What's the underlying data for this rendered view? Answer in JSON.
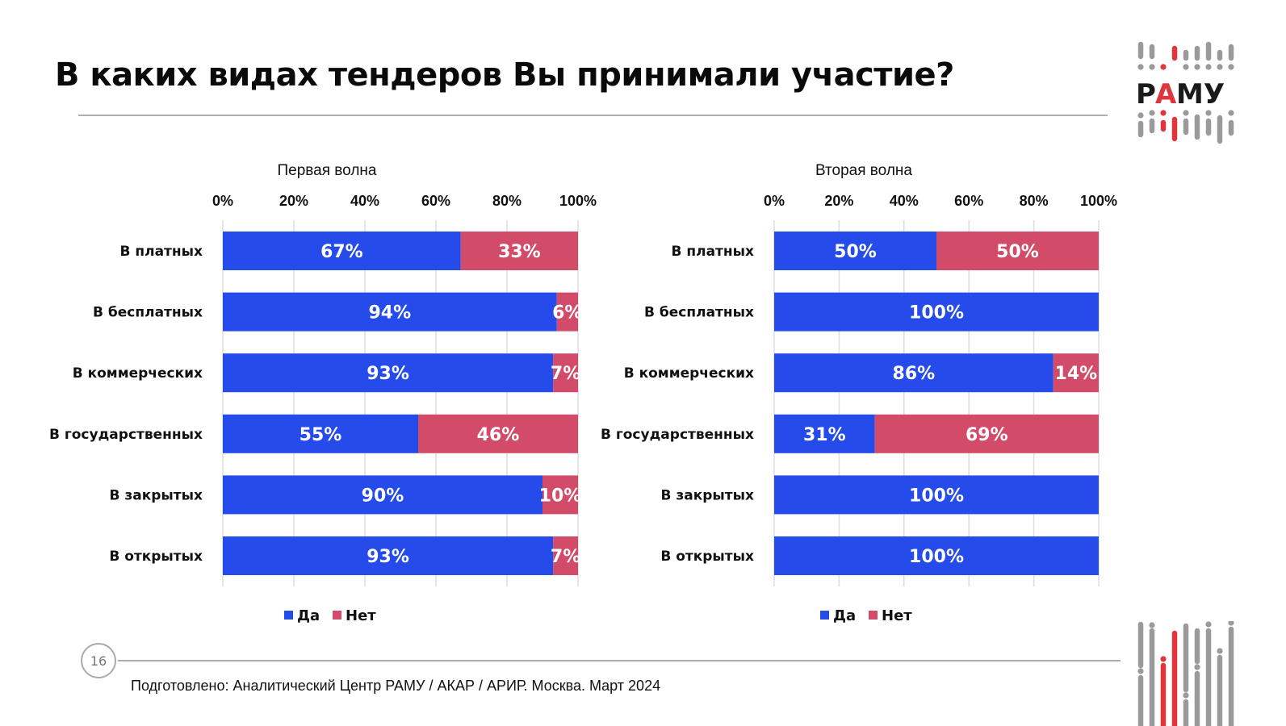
{
  "slide": {
    "title": "В каких видах тендеров Вы принимали участие?",
    "page_number": "16",
    "footer": "Подготовлено: Аналитический Центр РАМУ / АКАР / АРИР. Москва. Март 2024",
    "logo_text": "РАМУ"
  },
  "colors": {
    "yes": "#254BEB",
    "no": "#D24C69",
    "grid": "#dddddd",
    "logo_gray": "#9a9a9c",
    "logo_red": "#e0353d"
  },
  "chart_data": [
    {
      "type": "bar",
      "orientation": "horizontal",
      "stacked": true,
      "title": "Первая волна",
      "categories": [
        "В платных",
        "В бесплатных",
        "В коммерческих",
        "В государственных",
        "В закрытых",
        "В открытых"
      ],
      "series": [
        {
          "name": "Да",
          "values": [
            67,
            94,
            93,
            55,
            90,
            93
          ],
          "labels": [
            "67%",
            "94%",
            "93%",
            "55%",
            "90%",
            "93%"
          ]
        },
        {
          "name": "Нет",
          "values": [
            33,
            6,
            7,
            46,
            10,
            7
          ],
          "labels": [
            "33%",
            "6%",
            "7%",
            "46%",
            "10%",
            "7%"
          ]
        }
      ],
      "xlim": [
        0,
        100
      ],
      "xticks": [
        "0%",
        "20%",
        "40%",
        "60%",
        "80%",
        "100%"
      ],
      "grid": true,
      "legend": "bottom",
      "xaxis_position": "top"
    },
    {
      "type": "bar",
      "orientation": "horizontal",
      "stacked": true,
      "title": "Вторая волна",
      "categories": [
        "В платных",
        "В бесплатных",
        "В коммерческих",
        "В государственных",
        "В закрытых",
        "В открытых"
      ],
      "series": [
        {
          "name": "Да",
          "values": [
            50,
            100,
            86,
            31,
            100,
            100
          ],
          "labels": [
            "50%",
            "100%",
            "86%",
            "31%",
            "100%",
            "100%"
          ]
        },
        {
          "name": "Нет",
          "values": [
            50,
            0,
            14,
            69,
            0,
            0
          ],
          "labels": [
            "50%",
            "",
            "14%",
            "69%",
            "",
            ""
          ]
        }
      ],
      "xlim": [
        0,
        100
      ],
      "xticks": [
        "0%",
        "20%",
        "40%",
        "60%",
        "80%",
        "100%"
      ],
      "grid": true,
      "legend": "bottom",
      "xaxis_position": "top"
    }
  ]
}
